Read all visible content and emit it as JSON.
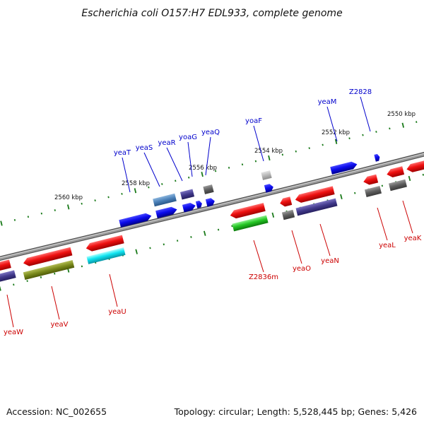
{
  "title": "Escherichia coli O157:H7 EDL933, complete genome",
  "footer": {
    "accession": "Accession: NC_002655",
    "summary": "Topology: circular; Length: 5,528,445 bp; Genes: 5,426"
  },
  "colors": {
    "top_label": "#0000cc",
    "bottom_label": "#cc0000",
    "tick": "#1a7a1a",
    "backbone": "#8a8a8a"
  },
  "kbp_labels": [
    {
      "text": "2550 kbp"
    },
    {
      "text": "2552 kbp"
    },
    {
      "text": "2554 kbp"
    },
    {
      "text": "2556 kbp"
    },
    {
      "text": "2558 kbp"
    },
    {
      "text": "2560 kbp"
    }
  ],
  "top_genes": [
    {
      "label": "yeaM"
    },
    {
      "label": "Z2828"
    },
    {
      "label": "yoaF"
    },
    {
      "label": "yeaQ"
    },
    {
      "label": "yoaG"
    },
    {
      "label": "yeaR"
    },
    {
      "label": "yeaS"
    },
    {
      "label": "yeaT"
    }
  ],
  "bottom_genes": [
    {
      "label": "yeaK"
    },
    {
      "label": "yeaL"
    },
    {
      "label": "yeaN"
    },
    {
      "label": "yeaO"
    },
    {
      "label": "Z2836m"
    },
    {
      "label": "yeaU"
    },
    {
      "label": "yeaV"
    },
    {
      "label": "yeaW"
    }
  ]
}
